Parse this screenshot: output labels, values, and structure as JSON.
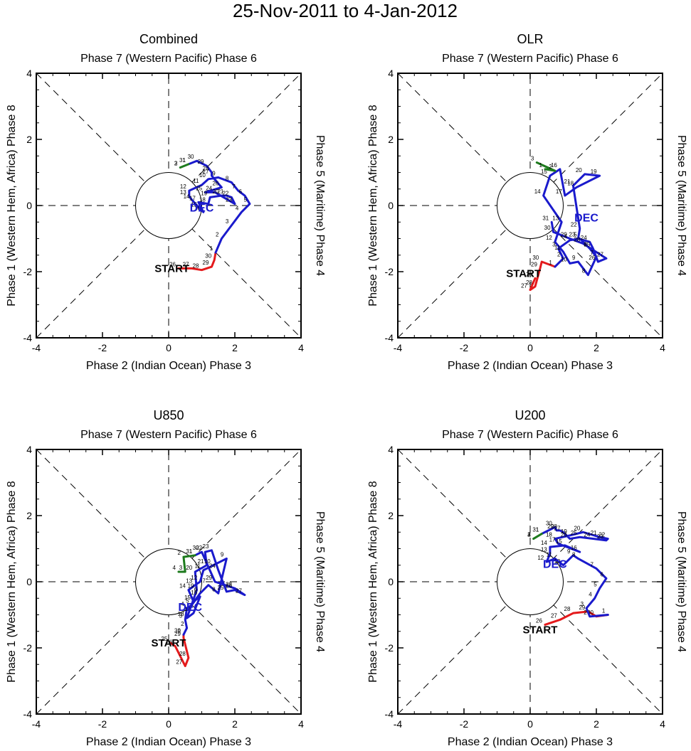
{
  "figure": {
    "title": "25-Nov-2011 to 4-Jan-2012"
  },
  "style": {
    "nov_color": "#e41a1c",
    "dec_color": "#1a1acc",
    "jan_color": "#1e7b1e",
    "axis_color": "#000000"
  },
  "chart_data": [
    {
      "type": "line",
      "panel": "Combined",
      "title": "Combined",
      "top_label": "Phase 7 (Western Pacific) Phase 6",
      "bottom_label": "Phase 2 (Indian Ocean) Phase 3",
      "left_label": "Phase 1 (Western Hem, Africa) Phase 8",
      "right_label": "Phase 5 (Maritime) Phase 4",
      "xlim": [
        -4,
        4
      ],
      "ylim": [
        -4,
        4
      ],
      "xticks": [
        "-4",
        "-2",
        "0",
        "2",
        "4"
      ],
      "yticks": [
        "-4",
        "-2",
        "0",
        "2",
        "4"
      ],
      "start_label": "START",
      "start_pos": [
        0.1,
        -1.9
      ],
      "month_label": "DEC",
      "month_pos": [
        1.0,
        -0.05
      ],
      "series": [
        {
          "name": "Nov",
          "color_key": "nov_color",
          "points": [
            [
              0.3,
              -1.9
            ],
            [
              0.7,
              -1.9
            ],
            [
              1.0,
              -1.95
            ],
            [
              1.3,
              -1.85
            ],
            [
              1.38,
              -1.65
            ],
            [
              1.42,
              -1.42
            ]
          ],
          "labels": [
            "26",
            "27",
            "28",
            "29",
            "30"
          ]
        },
        {
          "name": "Dec",
          "color_key": "dec_color",
          "points": [
            [
              1.42,
              -1.42
            ],
            [
              1.6,
              -1.0
            ],
            [
              1.9,
              -0.6
            ],
            [
              2.2,
              -0.2
            ],
            [
              2.45,
              0.05
            ],
            [
              2.3,
              0.3
            ],
            [
              2.1,
              0.45
            ],
            [
              1.9,
              0.7
            ],
            [
              1.5,
              0.85
            ],
            [
              1.2,
              0.8
            ],
            [
              1.0,
              0.62
            ],
            [
              0.62,
              0.45
            ],
            [
              0.62,
              0.28
            ],
            [
              0.72,
              0.15
            ],
            [
              0.95,
              -0.1
            ],
            [
              1.05,
              -0.2
            ],
            [
              0.9,
              0.1
            ],
            [
              1.2,
              0.05
            ],
            [
              1.25,
              0.25
            ],
            [
              1.6,
              0.3
            ],
            [
              1.75,
              0.3
            ],
            [
              1.9,
              0.25
            ],
            [
              2.0,
              0.05
            ],
            [
              1.4,
              0.4
            ],
            [
              1.1,
              0.4
            ],
            [
              1.6,
              0.55
            ],
            [
              1.3,
              0.9
            ],
            [
              1.3,
              1.0
            ],
            [
              1.15,
              1.2
            ],
            [
              0.85,
              1.35
            ],
            [
              0.6,
              1.25
            ]
          ],
          "labels": [
            "1",
            "2",
            "3",
            "4",
            "5",
            "6",
            "7",
            "8",
            "9",
            "10",
            "11",
            "12",
            "13",
            "14",
            "15",
            "16",
            "17",
            "18",
            "19",
            "20",
            "21",
            "22",
            "23",
            "24",
            "25",
            "26",
            "27",
            "28",
            "29",
            "30",
            "31"
          ]
        },
        {
          "name": "Jan",
          "color_key": "jan_color",
          "points": [
            [
              0.6,
              1.25
            ],
            [
              0.35,
              1.15
            ]
          ],
          "labels": [
            "1",
            "2",
            "3"
          ]
        }
      ]
    },
    {
      "type": "line",
      "panel": "OLR",
      "title": "OLR",
      "top_label": "Phase 7 (Western Pacific) Phase 6",
      "bottom_label": "Phase 2 (Indian Ocean) Phase 3",
      "left_label": "Phase 1 (Western Hem, Africa) Phase 8",
      "right_label": "Phase 5 (Maritime) Phase 4",
      "xlim": [
        -4,
        4
      ],
      "ylim": [
        -4,
        4
      ],
      "xticks": [
        "-4",
        "-2",
        "0",
        "2",
        "4"
      ],
      "yticks": [
        "-4",
        "-2",
        "0",
        "2",
        "4"
      ],
      "start_label": "START",
      "start_pos": [
        -0.2,
        -2.05
      ],
      "month_label": "DEC",
      "month_pos": [
        1.7,
        -0.35
      ],
      "series": [
        {
          "name": "Nov",
          "color_key": "nov_color",
          "points": [
            [
              0.15,
              -2.2
            ],
            [
              0.0,
              -2.55
            ],
            [
              0.15,
              -2.45
            ],
            [
              0.3,
              -1.9
            ],
            [
              0.35,
              -1.7
            ],
            [
              0.75,
              -1.85
            ]
          ],
          "labels": [
            "26",
            "27",
            "28",
            "29",
            "30"
          ]
        },
        {
          "name": "Dec",
          "color_key": "dec_color",
          "points": [
            [
              0.75,
              -1.85
            ],
            [
              1.0,
              -1.6
            ],
            [
              0.85,
              -1.3
            ],
            [
              1.2,
              -1.05
            ],
            [
              1.5,
              -1.0
            ],
            [
              1.8,
              -1.3
            ],
            [
              2.0,
              -1.55
            ],
            [
              1.75,
              -2.1
            ],
            [
              1.45,
              -1.7
            ],
            [
              1.2,
              -1.75
            ],
            [
              1.0,
              -1.4
            ],
            [
              0.75,
              -1.1
            ],
            [
              0.95,
              -0.5
            ],
            [
              0.4,
              0.3
            ],
            [
              0.6,
              0.9
            ],
            [
              0.9,
              1.1
            ],
            [
              1.05,
              0.3
            ],
            [
              1.4,
              0.55
            ],
            [
              2.1,
              0.9
            ],
            [
              1.65,
              0.95
            ],
            [
              1.3,
              0.6
            ],
            [
              1.5,
              -0.7
            ],
            [
              1.45,
              -1.0
            ],
            [
              1.8,
              -1.1
            ],
            [
              1.9,
              -1.3
            ],
            [
              2.05,
              -1.7
            ],
            [
              2.3,
              -1.6
            ],
            [
              1.6,
              -1.15
            ],
            [
              1.2,
              -1.0
            ],
            [
              0.7,
              -0.8
            ],
            [
              0.65,
              -0.5
            ]
          ],
          "labels": [
            "1",
            "2",
            "3",
            "4",
            "5",
            "6",
            "7",
            "8",
            "9",
            "10",
            "11",
            "12",
            "13",
            "14",
            "15",
            "16",
            "17",
            "18",
            "19",
            "20",
            "21",
            "22",
            "23",
            "24",
            "25",
            "26",
            "27",
            "28",
            "29",
            "30",
            "31"
          ]
        },
        {
          "name": "Jan",
          "color_key": "jan_color",
          "points": [
            [
              0.45,
              1.1
            ],
            [
              0.75,
              1.05
            ],
            [
              0.2,
              1.3
            ]
          ],
          "labels": [
            "1",
            "2",
            "3"
          ]
        }
      ]
    },
    {
      "type": "line",
      "panel": "U850",
      "title": "U850",
      "top_label": "Phase 7 (Western Pacific) Phase 6",
      "bottom_label": "Phase 2 (Indian Ocean) Phase 3",
      "left_label": "Phase 1 (Western Hem, Africa) Phase 8",
      "right_label": "Phase 5 (Maritime) Phase 4",
      "xlim": [
        -4,
        4
      ],
      "ylim": [
        -4,
        4
      ],
      "xticks": [
        "-4",
        "-2",
        "0",
        "2",
        "4"
      ],
      "yticks": [
        "-4",
        "-2",
        "0",
        "2",
        "4"
      ],
      "start_label": "START",
      "start_pos": [
        0.0,
        -1.85
      ],
      "month_label": "DEC",
      "month_pos": [
        0.65,
        -0.75
      ],
      "series": [
        {
          "name": "Nov",
          "color_key": "nov_color",
          "points": [
            [
              0.05,
              -1.85
            ],
            [
              0.2,
              -1.95
            ],
            [
              0.5,
              -2.55
            ],
            [
              0.6,
              -2.3
            ],
            [
              0.45,
              -1.7
            ],
            [
              0.45,
              -1.6
            ]
          ],
          "labels": [
            "25",
            "26",
            "27",
            "28",
            "29",
            "30"
          ]
        },
        {
          "name": "Dec",
          "color_key": "dec_color",
          "points": [
            [
              0.45,
              -1.6
            ],
            [
              0.55,
              -1.4
            ],
            [
              0.5,
              -1.15
            ],
            [
              0.55,
              -0.8
            ],
            [
              0.7,
              -0.7
            ],
            [
              0.95,
              -0.35
            ],
            [
              1.2,
              -0.1
            ],
            [
              1.5,
              -0.35
            ],
            [
              1.75,
              0.7
            ],
            [
              1.35,
              0.5
            ],
            [
              1.05,
              0.35
            ],
            [
              0.95,
              0.0
            ],
            [
              0.8,
              -0.1
            ],
            [
              0.6,
              -0.25
            ],
            [
              0.75,
              -0.6
            ],
            [
              0.95,
              -0.45
            ],
            [
              0.75,
              -0.95
            ],
            [
              0.55,
              -1.1
            ],
            [
              0.85,
              -0.25
            ],
            [
              0.8,
              0.3
            ],
            [
              1.15,
              0.5
            ],
            [
              1.1,
              0.9
            ],
            [
              1.3,
              0.95
            ],
            [
              1.5,
              0.35
            ],
            [
              1.75,
              -0.3
            ],
            [
              2.0,
              -0.25
            ],
            [
              2.3,
              -0.4
            ],
            [
              2.0,
              -0.2
            ],
            [
              1.4,
              0.0
            ],
            [
              1.0,
              0.9
            ],
            [
              0.8,
              0.8
            ]
          ],
          "labels": [
            "1",
            "2",
            "3",
            "4",
            "5",
            "6",
            "7",
            "8",
            "9",
            "10",
            "11",
            "12",
            "13",
            "14",
            "15",
            "16",
            "17",
            "18",
            "19",
            "20",
            "21",
            "22",
            "23",
            "24",
            "25",
            "26",
            "27",
            "28",
            "29",
            "30",
            "31"
          ]
        },
        {
          "name": "Jan",
          "color_key": "jan_color",
          "points": [
            [
              0.8,
              0.8
            ],
            [
              0.45,
              0.75
            ],
            [
              0.5,
              0.3
            ],
            [
              0.3,
              0.3
            ]
          ],
          "labels": [
            "1",
            "2",
            "3",
            "4"
          ]
        }
      ]
    },
    {
      "type": "line",
      "panel": "U200",
      "title": "U200",
      "top_label": "Phase 7 (Western Pacific) Phase 6",
      "bottom_label": "Phase 2 (Indian Ocean) Phase 3",
      "left_label": "Phase 1 (Western Hem, Africa) Phase 8",
      "right_label": "Phase 5 (Maritime) Phase 4",
      "xlim": [
        -4,
        4
      ],
      "ylim": [
        -4,
        4
      ],
      "xticks": [
        "-4",
        "-2",
        "0",
        "2",
        "4"
      ],
      "yticks": [
        "-4",
        "-2",
        "0",
        "2",
        "4"
      ],
      "start_label": "START",
      "start_pos": [
        0.3,
        -1.45
      ],
      "month_label": "DEC",
      "month_pos": [
        0.75,
        0.55
      ],
      "series": [
        {
          "name": "Nov",
          "color_key": "nov_color",
          "points": [
            [
              0.45,
              -1.3
            ],
            [
              0.9,
              -1.15
            ],
            [
              1.3,
              -0.95
            ],
            [
              1.75,
              -0.9
            ],
            [
              2.0,
              -1.05
            ],
            [
              2.35,
              -1.0
            ]
          ],
          "labels": [
            "26",
            "27",
            "28",
            "29",
            "30"
          ]
        },
        {
          "name": "Dec",
          "color_key": "dec_color",
          "points": [
            [
              2.35,
              -1.0
            ],
            [
              1.8,
              -1.05
            ],
            [
              1.7,
              -0.8
            ],
            [
              1.95,
              -0.5
            ],
            [
              2.1,
              -0.2
            ],
            [
              2.3,
              0.1
            ],
            [
              2.0,
              0.4
            ],
            [
              1.45,
              0.7
            ],
            [
              1.3,
              0.8
            ],
            [
              1.0,
              0.5
            ],
            [
              0.75,
              0.7
            ],
            [
              0.5,
              0.6
            ],
            [
              0.6,
              0.85
            ],
            [
              0.6,
              1.05
            ],
            [
              1.05,
              1.1
            ],
            [
              1.5,
              0.9
            ],
            [
              0.85,
              1.15
            ],
            [
              0.75,
              1.3
            ],
            [
              1.2,
              1.4
            ],
            [
              1.6,
              1.5
            ],
            [
              2.1,
              1.35
            ],
            [
              2.35,
              1.3
            ],
            [
              2.3,
              1.25
            ],
            [
              1.9,
              1.3
            ],
            [
              1.5,
              1.35
            ],
            [
              1.2,
              1.3
            ],
            [
              1.0,
              1.5
            ],
            [
              0.9,
              1.55
            ],
            [
              0.8,
              1.55
            ],
            [
              0.75,
              1.65
            ],
            [
              0.35,
              1.45
            ]
          ],
          "labels": [
            "1",
            "2",
            "3",
            "4",
            "5",
            "6",
            "7",
            "8",
            "9",
            "10",
            "11",
            "12",
            "13",
            "14",
            "15",
            "16",
            "17",
            "18",
            "19",
            "20",
            "21",
            "22",
            "23",
            "24",
            "25",
            "26",
            "27",
            "28",
            "29",
            "30",
            "31"
          ]
        },
        {
          "name": "Jan",
          "color_key": "jan_color",
          "points": [
            [
              0.35,
              1.45
            ],
            [
              0.1,
              1.3
            ]
          ],
          "labels": [
            "1",
            "2",
            "3",
            "4"
          ]
        }
      ]
    }
  ]
}
